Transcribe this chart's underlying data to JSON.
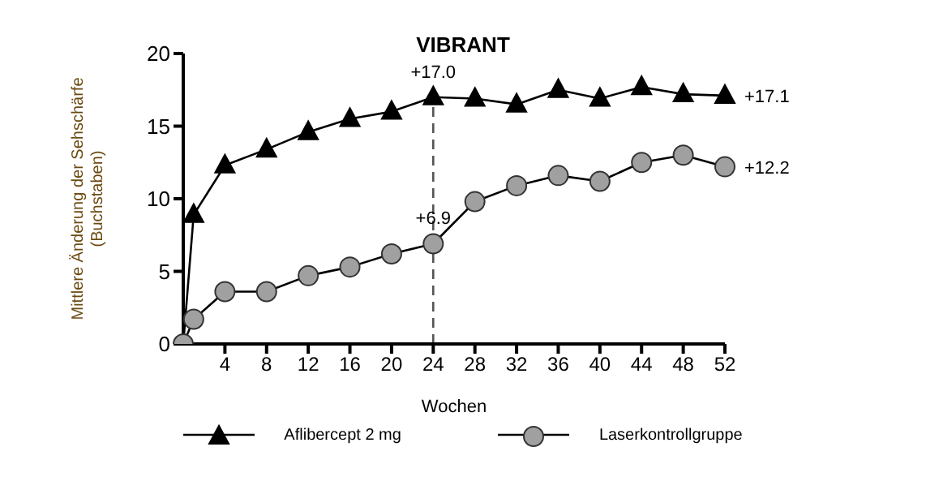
{
  "chart_data": {
    "type": "line",
    "title": "VIBRANT",
    "xlabel": "Wochen",
    "ylabel": "Mittlere Änderung der Sehschärfe\n(Buchstaben)",
    "x": [
      0,
      1,
      4,
      8,
      12,
      16,
      20,
      24,
      28,
      32,
      36,
      40,
      44,
      48,
      52
    ],
    "series": [
      {
        "name": "Aflibercept 2 mg",
        "color": "#000000",
        "marker": "triangle",
        "values": [
          0,
          8.9,
          12.3,
          13.4,
          14.6,
          15.5,
          16.0,
          17.0,
          16.9,
          16.5,
          17.5,
          16.9,
          17.7,
          17.2,
          17.1
        ],
        "value_labels": [
          null,
          null,
          null,
          null,
          null,
          null,
          null,
          "+17.0",
          null,
          null,
          null,
          null,
          null,
          null,
          "+17.1"
        ]
      },
      {
        "name": "Laserkontrollgruppe",
        "color": "#a0a0a0",
        "marker": "circle",
        "values": [
          0,
          1.7,
          3.6,
          3.6,
          4.7,
          5.3,
          6.2,
          6.9,
          9.8,
          10.9,
          11.6,
          11.2,
          12.5,
          13.0,
          12.2
        ],
        "value_labels": [
          null,
          null,
          null,
          null,
          null,
          null,
          null,
          "+6.9",
          null,
          null,
          null,
          null,
          null,
          null,
          "+12.2"
        ]
      }
    ],
    "xlim": [
      0,
      52
    ],
    "xticks": [
      4,
      8,
      12,
      16,
      20,
      24,
      28,
      32,
      36,
      40,
      44,
      48,
      52
    ],
    "ylim": [
      0,
      20
    ],
    "yticks": [
      0,
      5,
      10,
      15,
      20
    ],
    "ref_lines": [
      {
        "axis": "x",
        "value": 24,
        "line_style": "dashed",
        "color": "#555555"
      }
    ],
    "grid": false,
    "legend": "bottom",
    "line_style": "solid"
  }
}
